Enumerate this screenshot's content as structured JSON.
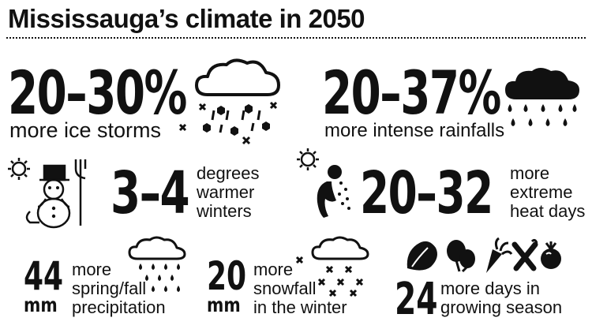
{
  "title": "Mississauga’s climate in 2050",
  "stats": {
    "ice": {
      "value": "20–30%",
      "desc": "more ice storms"
    },
    "rain": {
      "value": "20–37%",
      "desc": "more intense rainfalls"
    },
    "winter": {
      "value": "3–4",
      "lines": [
        "degrees",
        "warmer",
        "winters"
      ]
    },
    "heat": {
      "value": "20–32",
      "lines": [
        "more",
        "extreme",
        "heat days"
      ]
    },
    "precip": {
      "value": "44",
      "unit": "mm",
      "lines": [
        "more",
        "spring/fall",
        "precipitation"
      ]
    },
    "snow": {
      "value": "20",
      "unit": "mm",
      "lines": [
        "more",
        "snowfall",
        "in the winter"
      ]
    },
    "grow": {
      "value": "24",
      "lines": [
        "more days in",
        "growing season"
      ]
    }
  },
  "icons": [
    "cloud-ice-storm-icon",
    "dark-cloud-rain-icon",
    "snowman-icon",
    "sun-icon",
    "heat-person-icon",
    "cloud-rain-icon",
    "cloud-snow-icon",
    "lettuce-icon",
    "spinach-icon",
    "carrot-icon",
    "vegetables-icon",
    "tomato-icon"
  ]
}
